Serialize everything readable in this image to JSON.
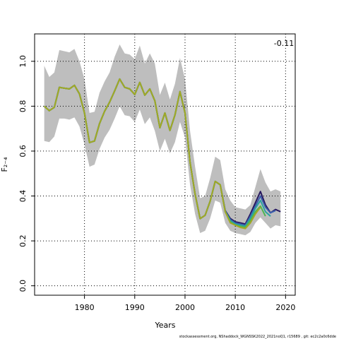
{
  "chart_data": {
    "type": "line",
    "ylabel": "F₂₋₄",
    "xlabel": "Years",
    "annotation": "-0.11",
    "footer": "stockassessment.org, NShaddock_WGNSSK2022_2021noQ1, r15689 , git: ec2c2a0c6dde",
    "x": [
      1972,
      1973,
      1974,
      1975,
      1976,
      1977,
      1978,
      1979,
      1980,
      1981,
      1982,
      1983,
      1984,
      1985,
      1986,
      1987,
      1988,
      1989,
      1990,
      1991,
      1992,
      1993,
      1994,
      1995,
      1996,
      1997,
      1998,
      1999,
      2000,
      2001,
      2002,
      2003,
      2004,
      2005,
      2006,
      2007,
      2008,
      2009,
      2010,
      2011,
      2012,
      2013,
      2014,
      2015,
      2016,
      2017,
      2018,
      2019
    ],
    "band": {
      "color": "#bebebe",
      "upper": [
        0.98,
        0.93,
        0.95,
        1.05,
        1.045,
        1.04,
        1.055,
        1.0,
        0.92,
        0.77,
        0.775,
        0.86,
        0.91,
        0.95,
        1.02,
        1.075,
        1.035,
        1.03,
        1.01,
        1.07,
        0.99,
        1.035,
        0.99,
        0.85,
        0.905,
        0.83,
        0.9,
        1.015,
        0.92,
        0.69,
        0.53,
        0.39,
        0.4,
        0.48,
        0.575,
        0.56,
        0.43,
        0.38,
        0.35,
        0.345,
        0.34,
        0.36,
        0.44,
        0.52,
        0.46,
        0.42,
        0.43,
        0.42
      ],
      "lower": [
        0.645,
        0.64,
        0.665,
        0.745,
        0.745,
        0.74,
        0.75,
        0.71,
        0.63,
        0.53,
        0.54,
        0.61,
        0.66,
        0.695,
        0.745,
        0.8,
        0.76,
        0.755,
        0.73,
        0.785,
        0.72,
        0.75,
        0.69,
        0.6,
        0.655,
        0.59,
        0.64,
        0.73,
        0.66,
        0.45,
        0.32,
        0.235,
        0.245,
        0.3,
        0.38,
        0.37,
        0.28,
        0.245,
        0.235,
        0.23,
        0.225,
        0.24,
        0.28,
        0.305,
        0.28,
        0.255,
        0.27,
        0.265
      ]
    },
    "series": [
      {
        "color": "#27185f",
        "values": [
          0.8,
          0.78,
          0.795,
          0.884,
          0.88,
          0.877,
          0.893,
          0.855,
          0.77,
          0.638,
          0.645,
          0.723,
          0.777,
          0.818,
          0.868,
          0.921,
          0.884,
          0.877,
          0.852,
          0.906,
          0.849,
          0.877,
          0.824,
          0.704,
          0.77,
          0.692,
          0.761,
          0.865,
          0.77,
          0.55,
          0.409,
          0.299,
          0.314,
          0.377,
          0.465,
          0.45,
          0.335,
          0.3,
          0.285,
          0.28,
          0.275,
          0.32,
          0.37,
          0.42,
          0.36,
          0.325,
          0.34,
          0.33
        ]
      },
      {
        "color": "#3b5ead",
        "values": [
          0.8,
          0.78,
          0.795,
          0.884,
          0.88,
          0.877,
          0.893,
          0.855,
          0.77,
          0.638,
          0.645,
          0.723,
          0.777,
          0.818,
          0.868,
          0.921,
          0.884,
          0.877,
          0.852,
          0.906,
          0.849,
          0.877,
          0.824,
          0.704,
          0.77,
          0.692,
          0.761,
          0.865,
          0.77,
          0.55,
          0.409,
          0.299,
          0.314,
          0.377,
          0.465,
          0.45,
          0.333,
          0.295,
          0.28,
          0.275,
          0.27,
          0.31,
          0.355,
          0.4,
          0.35,
          0.325,
          0.335,
          null
        ]
      },
      {
        "color": "#2aa3a0",
        "values": [
          0.8,
          0.78,
          0.795,
          0.884,
          0.88,
          0.877,
          0.893,
          0.855,
          0.77,
          0.638,
          0.645,
          0.723,
          0.777,
          0.818,
          0.868,
          0.921,
          0.884,
          0.877,
          0.852,
          0.906,
          0.849,
          0.877,
          0.824,
          0.704,
          0.77,
          0.692,
          0.761,
          0.865,
          0.77,
          0.55,
          0.409,
          0.299,
          0.314,
          0.377,
          0.465,
          0.45,
          0.331,
          0.29,
          0.275,
          0.27,
          0.265,
          0.3,
          0.345,
          0.38,
          0.33,
          0.31,
          null,
          null
        ]
      },
      {
        "color": "#4fb64f",
        "values": [
          0.8,
          0.78,
          0.795,
          0.884,
          0.88,
          0.877,
          0.893,
          0.855,
          0.77,
          0.638,
          0.645,
          0.723,
          0.777,
          0.818,
          0.868,
          0.921,
          0.884,
          0.877,
          0.852,
          0.906,
          0.849,
          0.877,
          0.824,
          0.704,
          0.77,
          0.692,
          0.761,
          0.865,
          0.77,
          0.55,
          0.409,
          0.299,
          0.314,
          0.377,
          0.465,
          0.45,
          0.33,
          0.285,
          0.27,
          0.265,
          0.26,
          0.29,
          0.33,
          0.355,
          0.31,
          null,
          null,
          null
        ]
      },
      {
        "color": "#a3a825",
        "values": [
          0.8,
          0.78,
          0.795,
          0.884,
          0.88,
          0.877,
          0.893,
          0.855,
          0.77,
          0.638,
          0.645,
          0.723,
          0.777,
          0.818,
          0.868,
          0.921,
          0.884,
          0.877,
          0.852,
          0.906,
          0.849,
          0.877,
          0.824,
          0.704,
          0.77,
          0.692,
          0.761,
          0.865,
          0.77,
          0.55,
          0.409,
          0.299,
          0.314,
          0.377,
          0.465,
          0.45,
          0.33,
          0.28,
          0.27,
          0.26,
          0.255,
          0.28,
          0.32,
          0.35,
          null,
          null,
          null,
          null
        ]
      }
    ],
    "xlim": [
      1970.08,
      2021.92
    ],
    "ylim": [
      -0.042,
      1.122
    ],
    "xticks": [
      1980,
      1990,
      2000,
      2010,
      2020
    ],
    "yticks": [
      {
        "value": 0,
        "label": "0.0"
      },
      0.2,
      0.4,
      0.6,
      0.8,
      {
        "value": 1,
        "label": "1.0"
      }
    ],
    "grid": true
  }
}
